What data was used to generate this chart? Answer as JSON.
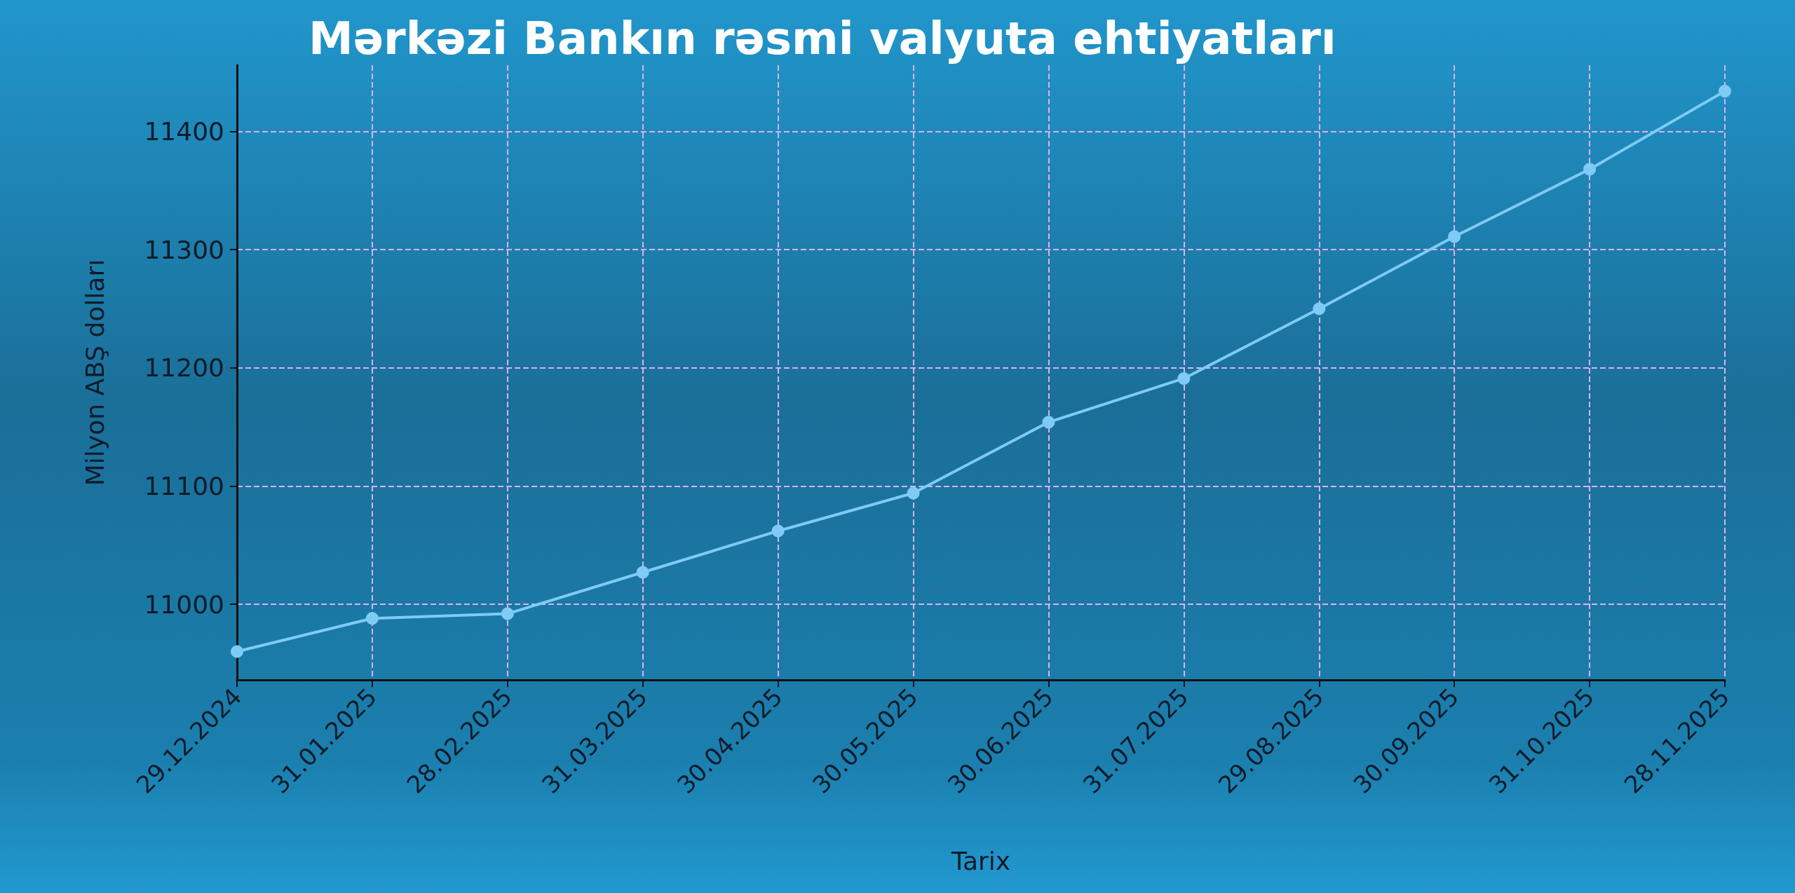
{
  "chart_data": {
    "type": "line",
    "title": "Mərkəzi Bankın rəsmi valyuta ehtiyatları",
    "xlabel": "Tarix",
    "ylabel": "Milyon ABŞ dolları",
    "categories": [
      "29.12.2024",
      "31.01.2025",
      "28.02.2025",
      "31.03.2025",
      "30.04.2025",
      "30.05.2025",
      "30.06.2025",
      "31.07.2025",
      "29.08.2025",
      "30.09.2025",
      "31.10.2025",
      "28.11.2025"
    ],
    "series": [
      {
        "color": "#7ecbf5",
        "values": [
          10960,
          10988,
          10992,
          11027,
          11062,
          11094,
          11154,
          11191,
          11250,
          11311,
          11368,
          11434
        ]
      }
    ],
    "ylim": [
      10936,
      11456
    ],
    "yticks": [
      11000,
      11100,
      11200,
      11300,
      11400
    ],
    "grid": true,
    "marker": "circle",
    "line_style": "solid"
  }
}
